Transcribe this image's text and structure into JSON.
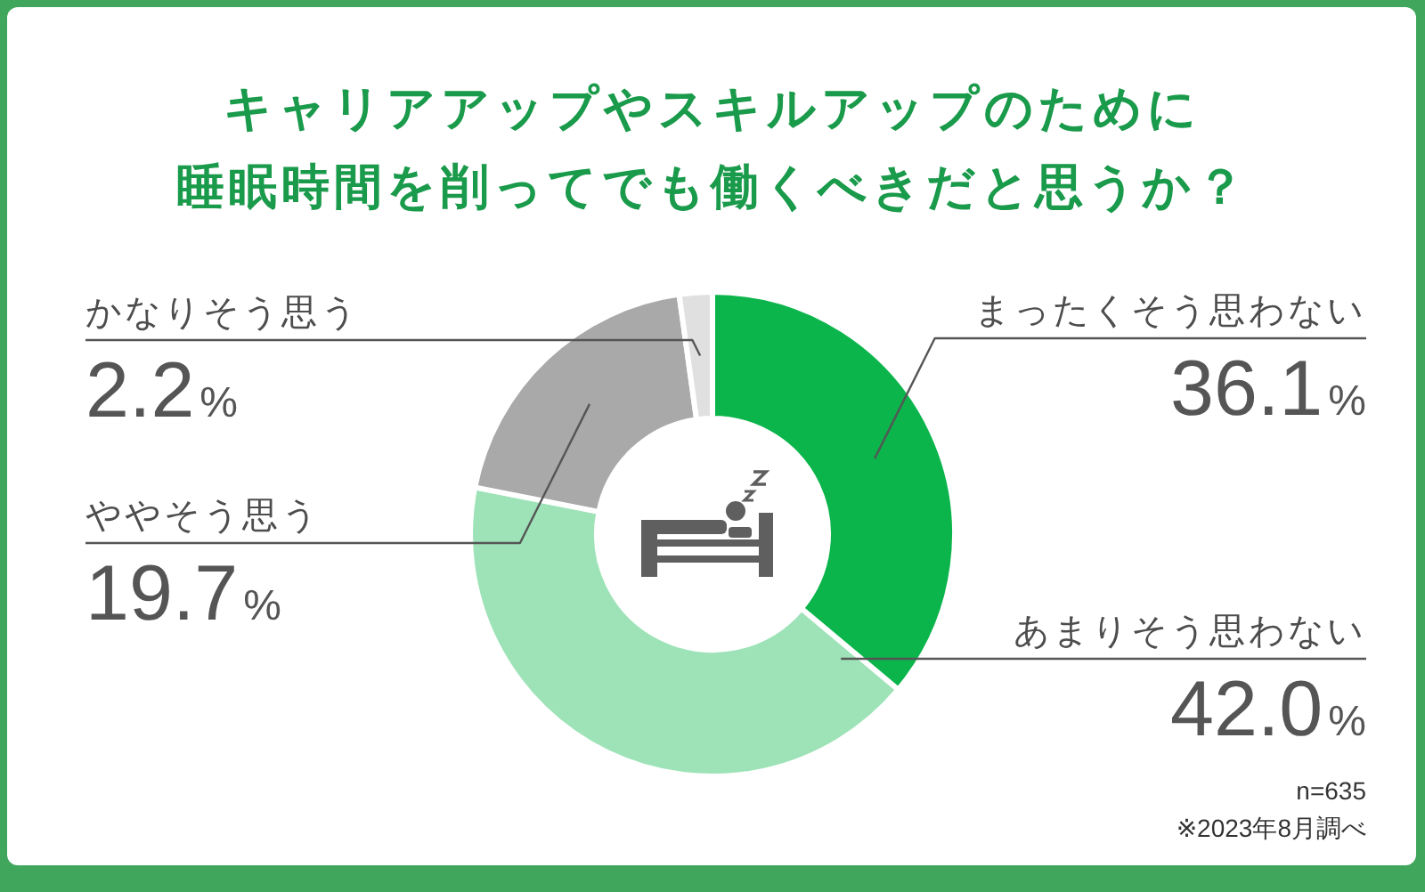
{
  "chart_data": {
    "type": "donut",
    "title": "キャリアアップやスキルアップのために睡眠時間を削ってでも働くべきだと思うか？",
    "categories": [
      "まったくそう思わない",
      "あまりそう思わない",
      "ややそう思う",
      "かなりそう思う"
    ],
    "values": [
      36.1,
      42.0,
      19.7,
      2.2
    ],
    "value_labels": [
      "36.1%",
      "42.0%",
      "19.7%",
      "2.2%"
    ],
    "colors": [
      "#0bb54b",
      "#9ee3b8",
      "#a9a9a9",
      "#e0e0e0"
    ],
    "annotations": [
      "n=635",
      "※2023年8月調べ"
    ]
  }
}
